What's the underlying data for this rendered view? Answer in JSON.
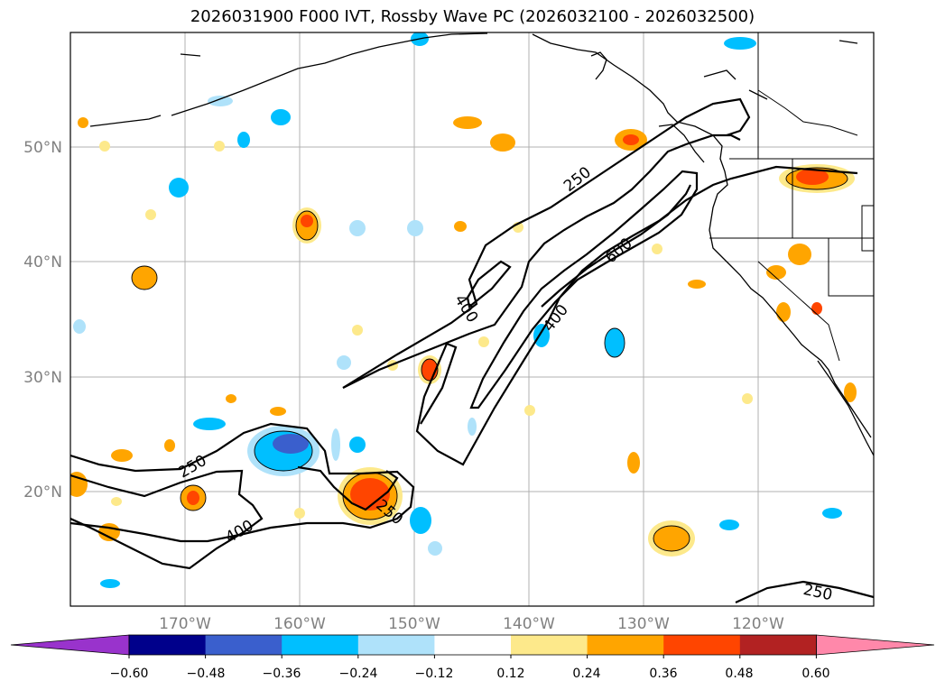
{
  "title": "2026031900 F000 IVT, Rossby Wave PC (2026032100 - 2026032500)",
  "map": {
    "lon_range": [
      -180,
      -110
    ],
    "lat_range": [
      10,
      60
    ],
    "lat_ticks": [
      "50°N",
      "40°N",
      "30°N",
      "20°N"
    ],
    "lon_ticks": [
      "170°W",
      "160°W",
      "150°W",
      "140°W",
      "130°W",
      "120°W"
    ],
    "contour_labels": [
      "250",
      "400",
      "600",
      "400",
      "250",
      "400",
      "250",
      "250"
    ]
  },
  "colorbar": {
    "ticks": [
      "−0.60",
      "−0.48",
      "−0.36",
      "−0.24",
      "−0.12",
      "0.12",
      "0.24",
      "0.36",
      "0.48",
      "0.60"
    ],
    "colors": [
      "#9933cc",
      "#00008b",
      "#3a5fcd",
      "#00bfff",
      "#afe2fa",
      "#ffffff",
      "#fde98b",
      "#ffa500",
      "#ff4500",
      "#b22222",
      "#ff88aa"
    ]
  }
}
